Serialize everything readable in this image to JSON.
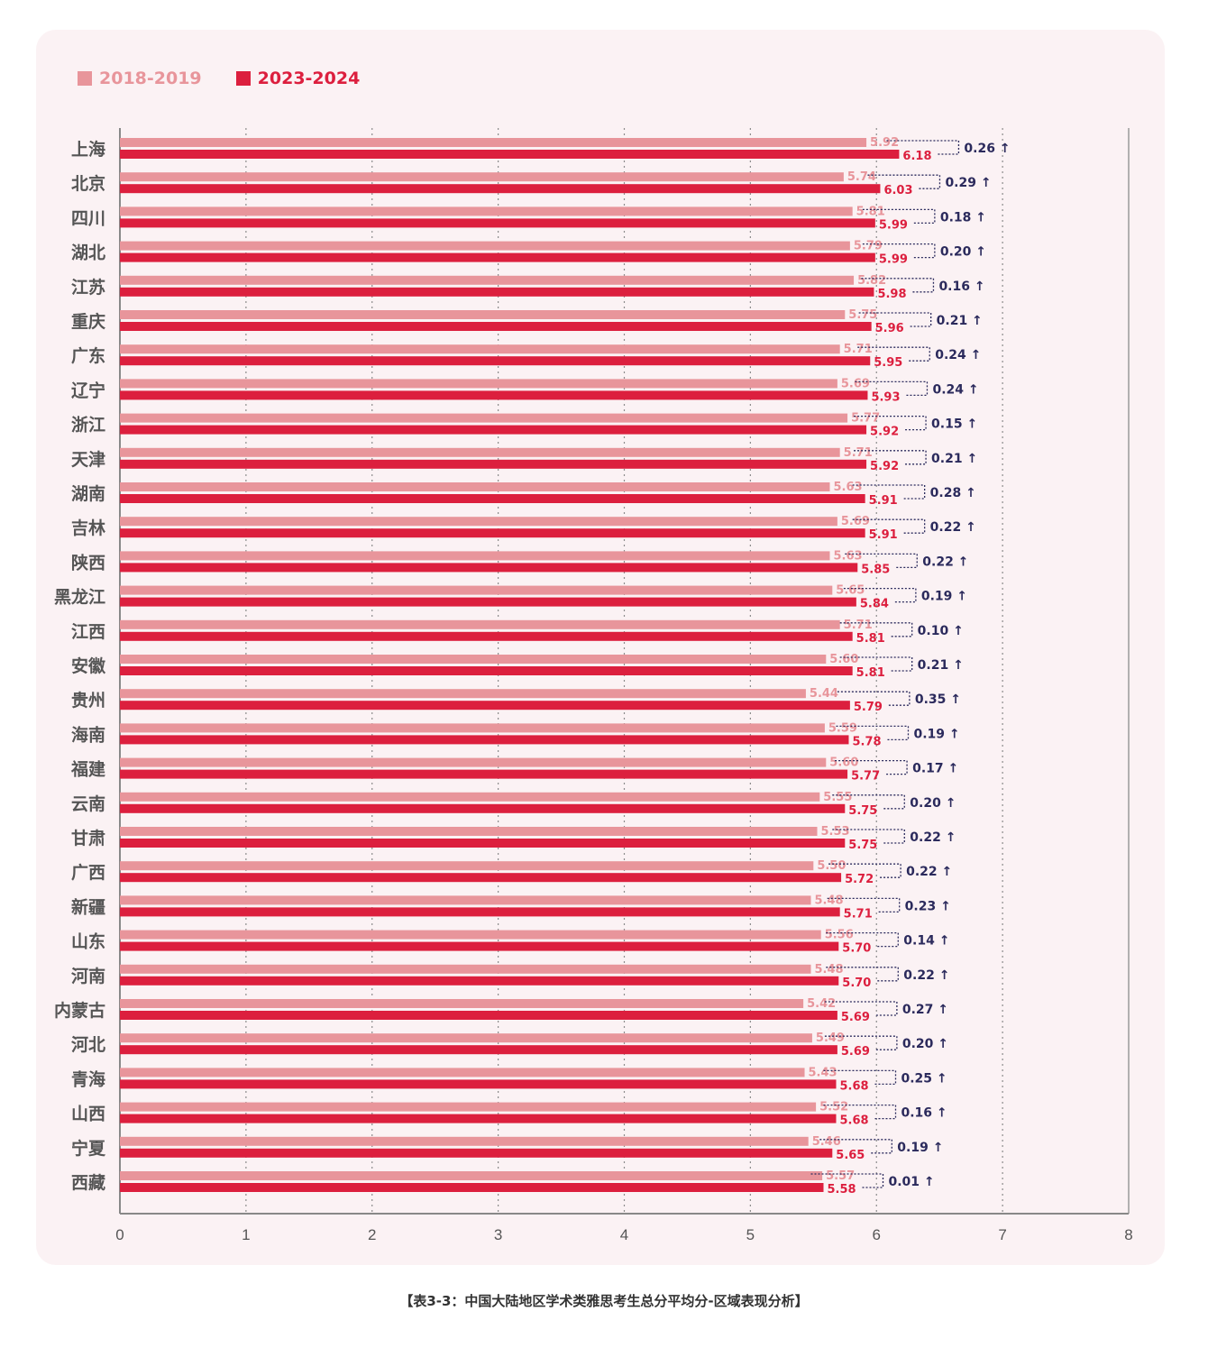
{
  "legend": {
    "series1": "2018-2019",
    "series2": "2023-2024",
    "color1": "#e8959b",
    "color2": "#dc1f3e"
  },
  "caption": "【表3-3：中国大陆地区学术类雅思考生总分平均分-区域表现分析】",
  "chart_data": {
    "type": "bar",
    "orientation": "horizontal",
    "categories": [
      "上海",
      "北京",
      "四川",
      "湖北",
      "江苏",
      "重庆",
      "广东",
      "辽宁",
      "浙江",
      "天津",
      "湖南",
      "吉林",
      "陕西",
      "黑龙江",
      "江西",
      "安徽",
      "贵州",
      "海南",
      "福建",
      "云南",
      "甘肃",
      "广西",
      "新疆",
      "山东",
      "河南",
      "内蒙古",
      "河北",
      "青海",
      "山西",
      "宁夏",
      "西藏"
    ],
    "series": [
      {
        "name": "2018-2019",
        "color": "#e8959b",
        "values": [
          5.92,
          5.74,
          5.81,
          5.79,
          5.82,
          5.75,
          5.71,
          5.69,
          5.77,
          5.71,
          5.63,
          5.69,
          5.63,
          5.65,
          5.71,
          5.6,
          5.44,
          5.59,
          5.6,
          5.55,
          5.53,
          5.5,
          5.48,
          5.56,
          5.48,
          5.42,
          5.49,
          5.43,
          5.52,
          5.46,
          5.57
        ]
      },
      {
        "name": "2023-2024",
        "color": "#dc1f3e",
        "values": [
          6.18,
          6.03,
          5.99,
          5.99,
          5.98,
          5.96,
          5.95,
          5.93,
          5.92,
          5.92,
          5.91,
          5.91,
          5.85,
          5.84,
          5.81,
          5.81,
          5.79,
          5.78,
          5.77,
          5.75,
          5.75,
          5.72,
          5.71,
          5.7,
          5.7,
          5.69,
          5.69,
          5.68,
          5.68,
          5.65,
          5.58
        ]
      }
    ],
    "diffs": [
      "0.26 ↑",
      "0.29 ↑",
      "0.18 ↑",
      "0.20 ↑",
      "0.16 ↑",
      "0.21 ↑",
      "0.24 ↑",
      "0.24 ↑",
      "0.15 ↑",
      "0.21 ↑",
      "0.28 ↑",
      "0.22 ↑",
      "0.22 ↑",
      "0.19 ↑",
      "0.10 ↑",
      "0.21 ↑",
      "0.35 ↑",
      "0.19 ↑",
      "0.17 ↑",
      "0.20 ↑",
      "0.22 ↑",
      "0.22 ↑",
      "0.23 ↑",
      "0.14 ↑",
      "0.22 ↑",
      "0.27 ↑",
      "0.20 ↑",
      "0.25 ↑",
      "0.16 ↑",
      "0.19 ↑",
      "0.01 ↑"
    ],
    "x_ticks": [
      "0",
      "1",
      "2",
      "3",
      "4",
      "5",
      "6",
      "7",
      "8"
    ],
    "xlim": [
      0,
      8
    ],
    "grid": "vertical dotted",
    "legend_position": "top-left"
  }
}
